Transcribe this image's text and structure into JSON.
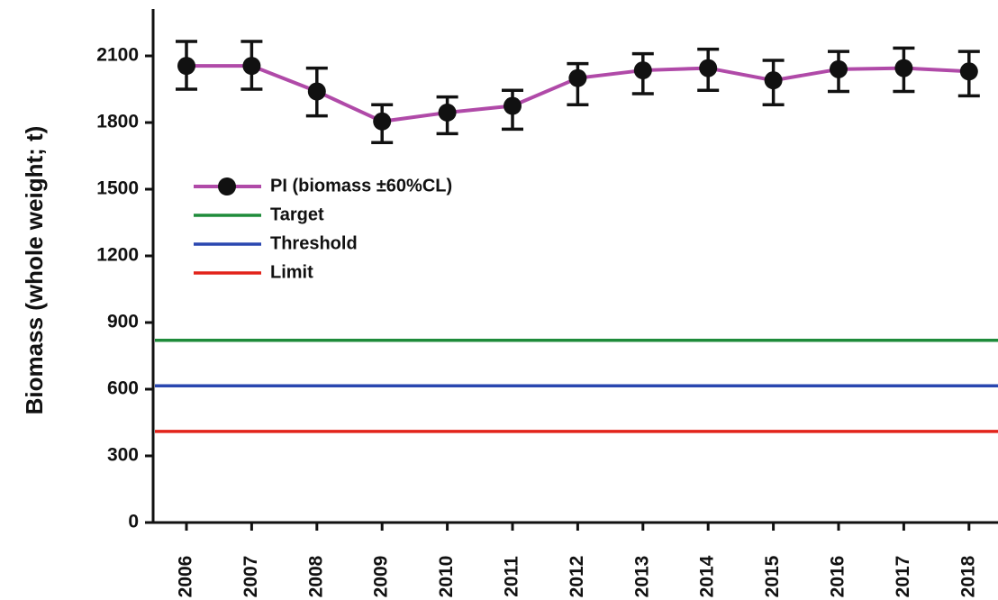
{
  "chart_data": {
    "type": "line",
    "ylabel": "Biomass (whole weight; t)",
    "categories": [
      "2006",
      "2007",
      "2008",
      "2009",
      "2010",
      "2011",
      "2012",
      "2013",
      "2014",
      "2015",
      "2016",
      "2017",
      "2018"
    ],
    "series": [
      {
        "name": "PI (biomass ±60%CL)",
        "color": "#b04aa8",
        "values": [
          2055,
          2055,
          1940,
          1805,
          1845,
          1875,
          2000,
          2035,
          2045,
          1990,
          2040,
          2045,
          2030
        ],
        "lower": [
          1950,
          1950,
          1830,
          1710,
          1750,
          1770,
          1880,
          1930,
          1945,
          1880,
          1940,
          1940,
          1920
        ],
        "upper": [
          2165,
          2165,
          2045,
          1880,
          1915,
          1945,
          2065,
          2110,
          2130,
          2080,
          2120,
          2135,
          2120
        ]
      }
    ],
    "reference_lines": [
      {
        "name": "Target",
        "color": "#1e8b3a",
        "value": 820
      },
      {
        "name": "Threshold",
        "color": "#2a47b0",
        "value": 615
      },
      {
        "name": "Limit",
        "color": "#e2231a",
        "value": 410
      }
    ],
    "ylim": [
      0,
      2300
    ],
    "yticks": [
      0,
      300,
      600,
      900,
      1200,
      1500,
      1800,
      2100
    ],
    "grid": false
  }
}
